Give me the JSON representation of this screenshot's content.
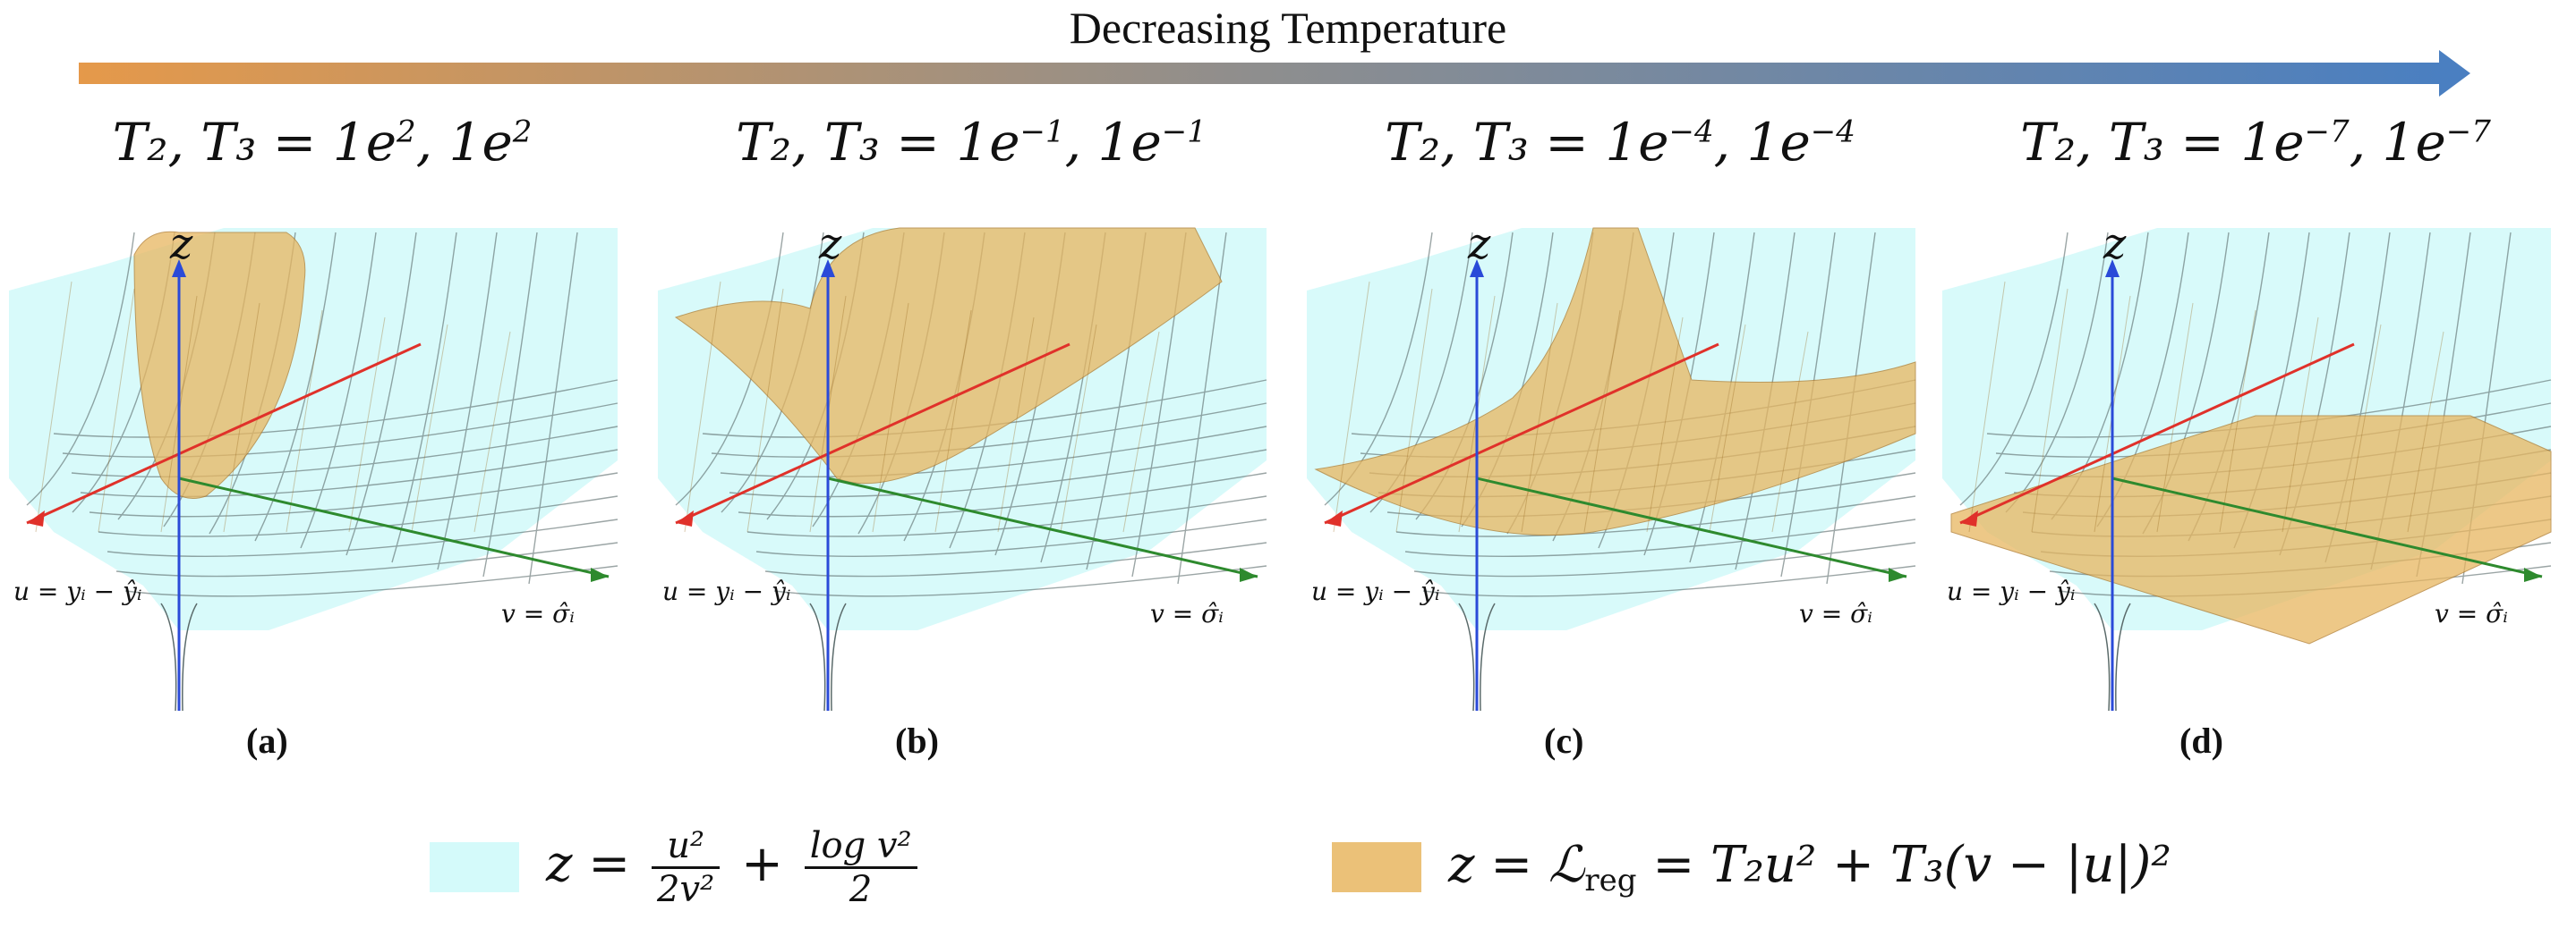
{
  "banner": {
    "label": "Decreasing Temperature",
    "color_start": "#e5994a",
    "color_mid": "#8e8e8e",
    "color_end": "#4a7fc1"
  },
  "colors": {
    "surface_nll": "#d4fafa",
    "surface_reg": "#e8b660",
    "grid_line": "#5a6a6a",
    "axis_x_red": "#e0312a",
    "axis_y_green": "#2e8a2e",
    "axis_z_blue": "#2a4ad8"
  },
  "panels": [
    {
      "title_base": "T",
      "title_rest": "₂, T₃ = 1e",
      "exp1": "2",
      "mid": ", 1e",
      "exp2": "2",
      "caption": "(a)",
      "z": "z",
      "u": "u = yᵢ − ŷᵢ",
      "v": "v = σ̂ᵢ"
    },
    {
      "title_base": "T",
      "title_rest": "₂, T₃ = 1e",
      "exp1": "−1",
      "mid": ", 1e",
      "exp2": "−1",
      "caption": "(b)",
      "z": "z",
      "u": "u = yᵢ − ŷᵢ",
      "v": "v = σ̂ᵢ"
    },
    {
      "title_base": "T",
      "title_rest": "₂, T₃ = 1e",
      "exp1": "−4",
      "mid": ", 1e",
      "exp2": "−4",
      "caption": "(c)",
      "z": "z",
      "u": "u = yᵢ − ŷᵢ",
      "v": "v = σ̂ᵢ"
    },
    {
      "title_base": "T",
      "title_rest": "₂, T₃ = 1e",
      "exp1": "−7",
      "mid": ", 1e",
      "exp2": "−7",
      "caption": "(d)",
      "z": "z",
      "u": "u = yᵢ − ŷᵢ",
      "v": "v = σ̂ᵢ"
    }
  ],
  "legend": {
    "nll": {
      "lhs": "z =",
      "num": "u²",
      "den": "2v²",
      "plus": "+",
      "num2": "log v²",
      "den2": "2"
    },
    "reg": {
      "lhs": "z = ℒ",
      "sub": "reg",
      "rhs": "= T₂u² + T₃(v − |u|)²"
    }
  }
}
